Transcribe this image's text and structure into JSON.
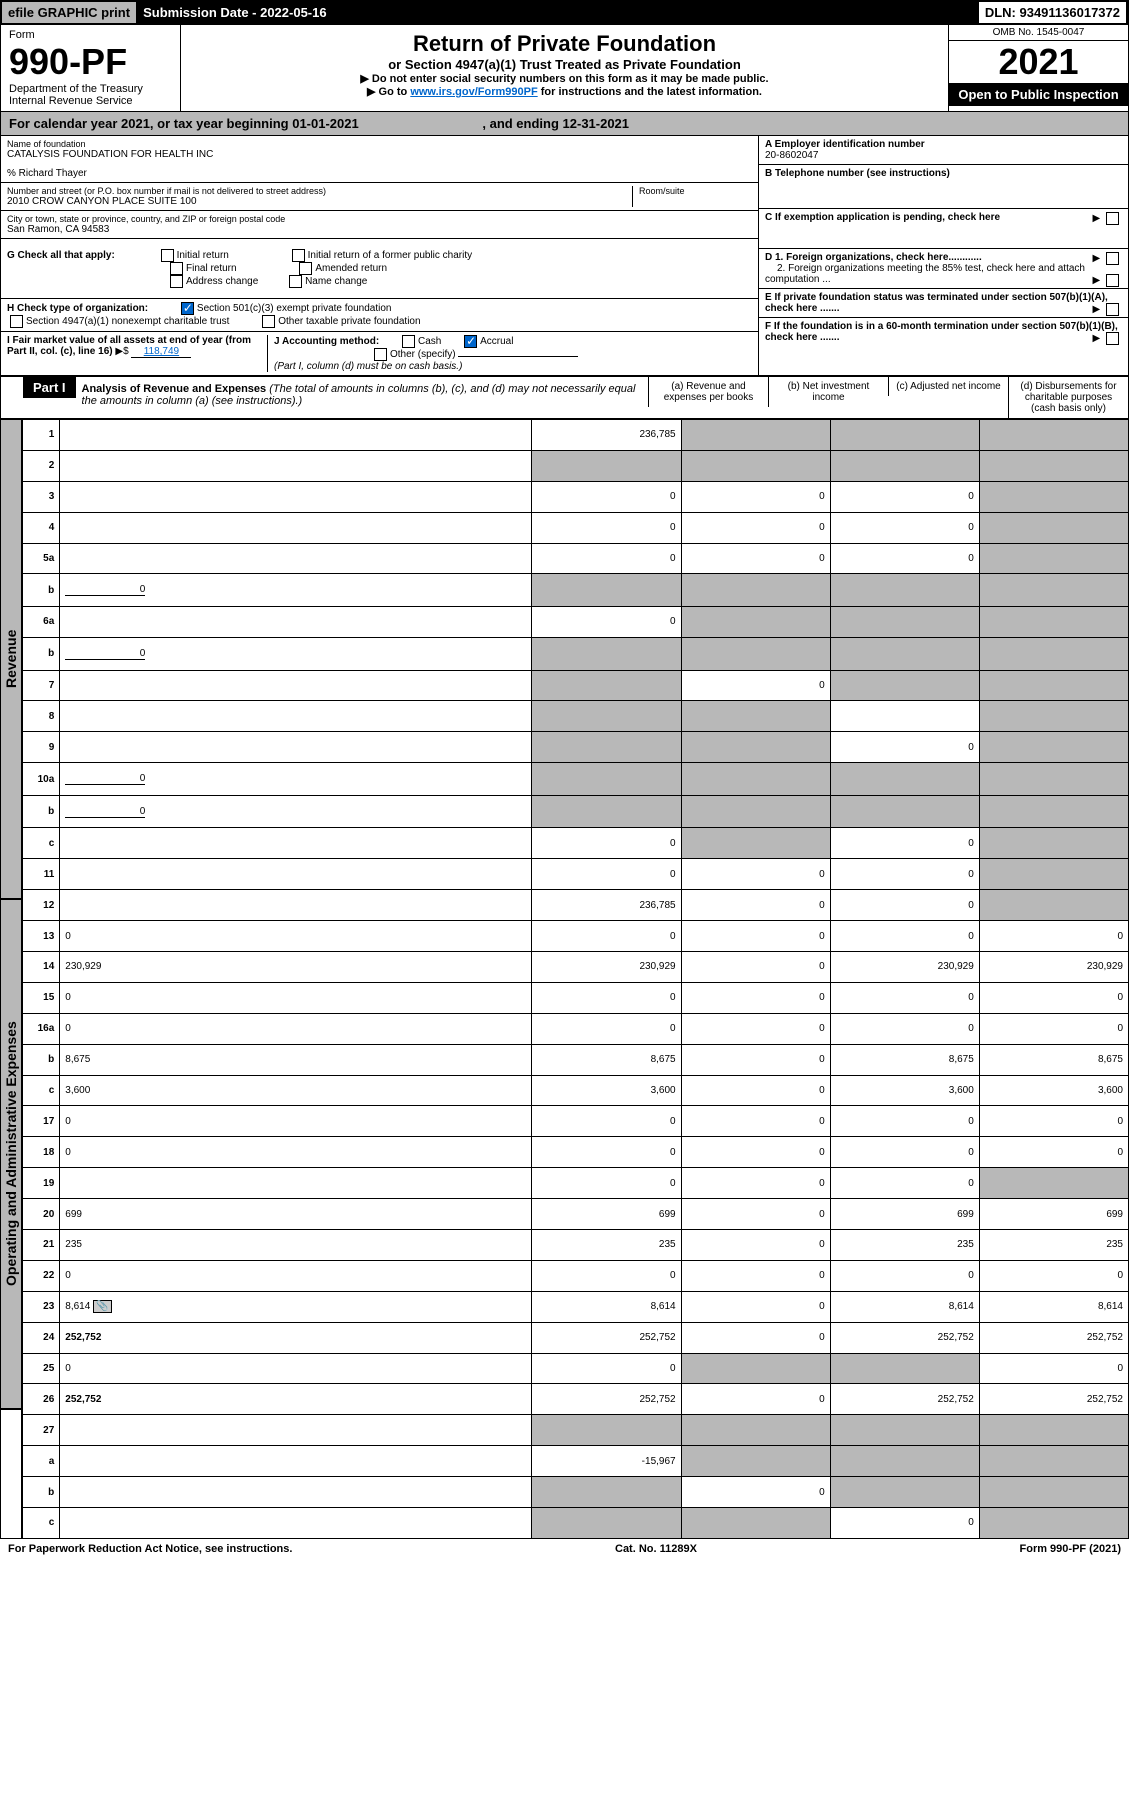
{
  "top": {
    "efile": "efile GRAPHIC print",
    "submission": "Submission Date - 2022-05-16",
    "dln": "DLN: 93491136017372"
  },
  "header": {
    "form_label": "Form",
    "form_num": "990-PF",
    "dept": "Department of the Treasury",
    "irs": "Internal Revenue Service",
    "title": "Return of Private Foundation",
    "subtitle": "or Section 4947(a)(1) Trust Treated as Private Foundation",
    "inst1": "▶ Do not enter social security numbers on this form as it may be made public.",
    "inst2_pre": "▶ Go to ",
    "inst2_link": "www.irs.gov/Form990PF",
    "inst2_post": " for instructions and the latest information.",
    "omb": "OMB No. 1545-0047",
    "year": "2021",
    "inspection": "Open to Public Inspection"
  },
  "calyear": {
    "text": "For calendar year 2021, or tax year beginning 01-01-2021",
    "ending": ", and ending 12-31-2021"
  },
  "foundation": {
    "name_lbl": "Name of foundation",
    "name": "CATALYSIS FOUNDATION FOR HEALTH INC",
    "care_of": "% Richard Thayer",
    "addr_lbl": "Number and street (or P.O. box number if mail is not delivered to street address)",
    "addr": "2010 CROW CANYON PLACE SUITE 100",
    "room_lbl": "Room/suite",
    "city_lbl": "City or town, state or province, country, and ZIP or foreign postal code",
    "city": "San Ramon, CA  94583",
    "ein_lbl": "A Employer identification number",
    "ein": "20-8602047",
    "phone_lbl": "B Telephone number (see instructions)",
    "c_lbl": "C If exemption application is pending, check here",
    "d1": "D 1. Foreign organizations, check here............",
    "d2": "2. Foreign organizations meeting the 85% test, check here and attach computation ...",
    "e_lbl": "E  If private foundation status was terminated under section 507(b)(1)(A), check here .......",
    "f_lbl": "F  If the foundation is in a 60-month termination under section 507(b)(1)(B), check here .......",
    "g_lbl": "G Check all that apply:",
    "g_opts": [
      "Initial return",
      "Final return",
      "Address change",
      "Initial return of a former public charity",
      "Amended return",
      "Name change"
    ],
    "h_lbl": "H Check type of organization:",
    "h_501c3": "Section 501(c)(3) exempt private foundation",
    "h_4947": "Section 4947(a)(1) nonexempt charitable trust",
    "h_other": "Other taxable private foundation",
    "i_lbl": "I Fair market value of all assets at end of year (from Part II, col. (c), line 16)",
    "i_val": "118,749",
    "j_lbl": "J Accounting method:",
    "j_cash": "Cash",
    "j_accrual": "Accrual",
    "j_other": "Other (specify)",
    "j_note": "(Part I, column (d) must be on cash basis.)"
  },
  "part1": {
    "label": "Part I",
    "title": "Analysis of Revenue and Expenses",
    "note": "(The total of amounts in columns (b), (c), and (d) may not necessarily equal the amounts in column (a) (see instructions).)",
    "cols": {
      "a": "(a)  Revenue and expenses per books",
      "b": "(b)  Net investment income",
      "c": "(c)  Adjusted net income",
      "d": "(d)  Disbursements for charitable purposes (cash basis only)"
    }
  },
  "sections": {
    "revenue": "Revenue",
    "expenses": "Operating and Administrative Expenses"
  },
  "rows": [
    {
      "n": "1",
      "d": "",
      "a": "236,785",
      "b": "",
      "c": "",
      "bs": true,
      "cs": true,
      "ds": true
    },
    {
      "n": "2",
      "d": "",
      "a": "",
      "b": "",
      "c": "",
      "as": true,
      "bs": true,
      "cs": true,
      "ds": true
    },
    {
      "n": "3",
      "d": "",
      "a": "0",
      "b": "0",
      "c": "0",
      "ds": true
    },
    {
      "n": "4",
      "d": "",
      "a": "0",
      "b": "0",
      "c": "0",
      "ds": true
    },
    {
      "n": "5a",
      "d": "",
      "a": "0",
      "b": "0",
      "c": "0",
      "ds": true
    },
    {
      "n": "b",
      "d": "",
      "inline": "0",
      "a": "",
      "b": "",
      "c": "",
      "as": true,
      "bs": true,
      "cs": true,
      "ds": true
    },
    {
      "n": "6a",
      "d": "",
      "a": "0",
      "b": "",
      "c": "",
      "bs": true,
      "cs": true,
      "ds": true
    },
    {
      "n": "b",
      "d": "",
      "inline": "0",
      "a": "",
      "b": "",
      "c": "",
      "as": true,
      "bs": true,
      "cs": true,
      "ds": true
    },
    {
      "n": "7",
      "d": "",
      "a": "",
      "b": "0",
      "c": "",
      "as": true,
      "cs": true,
      "ds": true
    },
    {
      "n": "8",
      "d": "",
      "a": "",
      "b": "",
      "c": "",
      "as": true,
      "bs": true,
      "ds": true
    },
    {
      "n": "9",
      "d": "",
      "a": "",
      "b": "",
      "c": "0",
      "as": true,
      "bs": true,
      "ds": true
    },
    {
      "n": "10a",
      "d": "",
      "inline": "0",
      "a": "",
      "b": "",
      "c": "",
      "as": true,
      "bs": true,
      "cs": true,
      "ds": true
    },
    {
      "n": "b",
      "d": "",
      "inline": "0",
      "a": "",
      "b": "",
      "c": "",
      "as": true,
      "bs": true,
      "cs": true,
      "ds": true
    },
    {
      "n": "c",
      "d": "",
      "a": "0",
      "b": "",
      "c": "0",
      "bs": true,
      "ds": true
    },
    {
      "n": "11",
      "d": "",
      "a": "0",
      "b": "0",
      "c": "0",
      "ds": true
    },
    {
      "n": "12",
      "d": "",
      "a": "236,785",
      "b": "0",
      "c": "0",
      "bold": true,
      "ds": true
    },
    {
      "n": "13",
      "d": "0",
      "a": "0",
      "b": "0",
      "c": "0",
      "sec": "exp"
    },
    {
      "n": "14",
      "d": "230,929",
      "a": "230,929",
      "b": "0",
      "c": "230,929"
    },
    {
      "n": "15",
      "d": "0",
      "a": "0",
      "b": "0",
      "c": "0"
    },
    {
      "n": "16a",
      "d": "0",
      "a": "0",
      "b": "0",
      "c": "0"
    },
    {
      "n": "b",
      "d": "8,675",
      "a": "8,675",
      "b": "0",
      "c": "8,675"
    },
    {
      "n": "c",
      "d": "3,600",
      "a": "3,600",
      "b": "0",
      "c": "3,600"
    },
    {
      "n": "17",
      "d": "0",
      "a": "0",
      "b": "0",
      "c": "0"
    },
    {
      "n": "18",
      "d": "0",
      "a": "0",
      "b": "0",
      "c": "0"
    },
    {
      "n": "19",
      "d": "",
      "a": "0",
      "b": "0",
      "c": "0",
      "ds": true
    },
    {
      "n": "20",
      "d": "699",
      "a": "699",
      "b": "0",
      "c": "699"
    },
    {
      "n": "21",
      "d": "235",
      "a": "235",
      "b": "0",
      "c": "235"
    },
    {
      "n": "22",
      "d": "0",
      "a": "0",
      "b": "0",
      "c": "0"
    },
    {
      "n": "23",
      "d": "8,614",
      "a": "8,614",
      "b": "0",
      "c": "8,614",
      "icon": true
    },
    {
      "n": "24",
      "d": "252,752",
      "a": "252,752",
      "b": "0",
      "c": "252,752",
      "bold": true
    },
    {
      "n": "25",
      "d": "0",
      "a": "0",
      "b": "",
      "c": "",
      "bs": true,
      "cs": true
    },
    {
      "n": "26",
      "d": "252,752",
      "a": "252,752",
      "b": "0",
      "c": "252,752",
      "bold": true
    },
    {
      "n": "27",
      "d": "",
      "a": "",
      "b": "",
      "c": "",
      "as": true,
      "bs": true,
      "cs": true,
      "ds": true,
      "sec": "bot"
    },
    {
      "n": "a",
      "d": "",
      "a": "-15,967",
      "b": "",
      "c": "",
      "bold": true,
      "bs": true,
      "cs": true,
      "ds": true
    },
    {
      "n": "b",
      "d": "",
      "a": "",
      "b": "0",
      "c": "",
      "bold": true,
      "as": true,
      "cs": true,
      "ds": true
    },
    {
      "n": "c",
      "d": "",
      "a": "",
      "b": "",
      "c": "0",
      "bold": true,
      "as": true,
      "bs": true,
      "ds": true
    }
  ],
  "footer": {
    "left": "For Paperwork Reduction Act Notice, see instructions.",
    "center": "Cat. No. 11289X",
    "right": "Form 990-PF (2021)"
  }
}
